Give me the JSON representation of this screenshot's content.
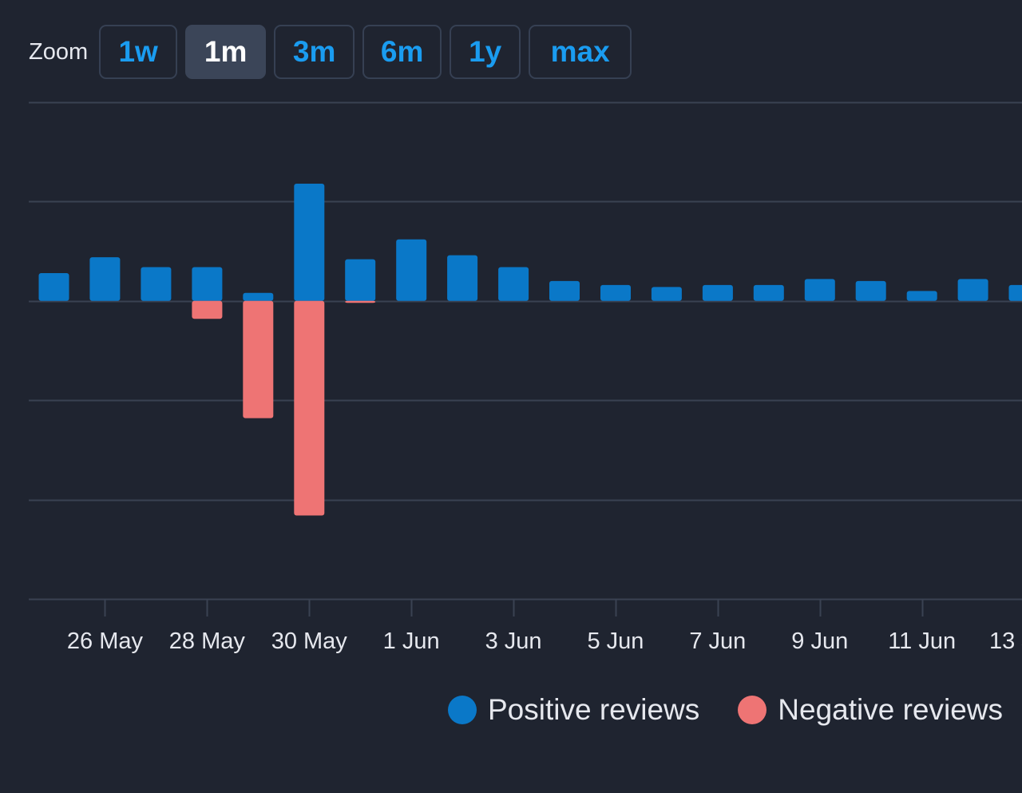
{
  "zoom": {
    "label": "Zoom",
    "buttons": [
      {
        "id": "1w",
        "label": "1w",
        "active": false
      },
      {
        "id": "1m",
        "label": "1m",
        "active": true
      },
      {
        "id": "3m",
        "label": "3m",
        "active": false
      },
      {
        "id": "6m",
        "label": "6m",
        "active": false
      },
      {
        "id": "1y",
        "label": "1y",
        "active": false
      },
      {
        "id": "max",
        "label": "max",
        "active": false
      }
    ]
  },
  "colors": {
    "background": "#1f2430",
    "grid": "#3a4252",
    "positive": "#0a78c8",
    "negative": "#ee7474",
    "tick_text": "#e6e8ee"
  },
  "chart_data": {
    "type": "bar",
    "stacked": true,
    "categories": [
      "25 May",
      "26 May",
      "27 May",
      "28 May",
      "29 May",
      "30 May",
      "31 May",
      "1 Jun",
      "2 Jun",
      "3 Jun",
      "4 Jun",
      "5 Jun",
      "6 Jun",
      "7 Jun",
      "8 Jun",
      "9 Jun",
      "10 Jun",
      "11 Jun",
      "12 Jun",
      "13 Jun"
    ],
    "x_tick_labels": [
      "26 May",
      "28 May",
      "30 May",
      "1 Jun",
      "3 Jun",
      "5 Jun",
      "7 Jun",
      "9 Jun",
      "11 Jun",
      "13 Jun"
    ],
    "series": [
      {
        "name": "Positive reviews",
        "color": "#0a78c8",
        "values": [
          14,
          22,
          17,
          17,
          4,
          59,
          21,
          31,
          23,
          17,
          10,
          8,
          7,
          8,
          8,
          11,
          10,
          5,
          11,
          8
        ]
      },
      {
        "name": "Negative reviews",
        "color": "#ee7474",
        "values": [
          0,
          0,
          0,
          -9,
          -59,
          -108,
          -1,
          0,
          0,
          0,
          0,
          0,
          0,
          0,
          0,
          0,
          0,
          0,
          0,
          0
        ]
      }
    ],
    "ylim": [
      -150,
      100
    ],
    "yticks": [
      100,
      50,
      0,
      -50,
      -100,
      -150
    ],
    "grid": true,
    "legend": "bottom-right"
  }
}
